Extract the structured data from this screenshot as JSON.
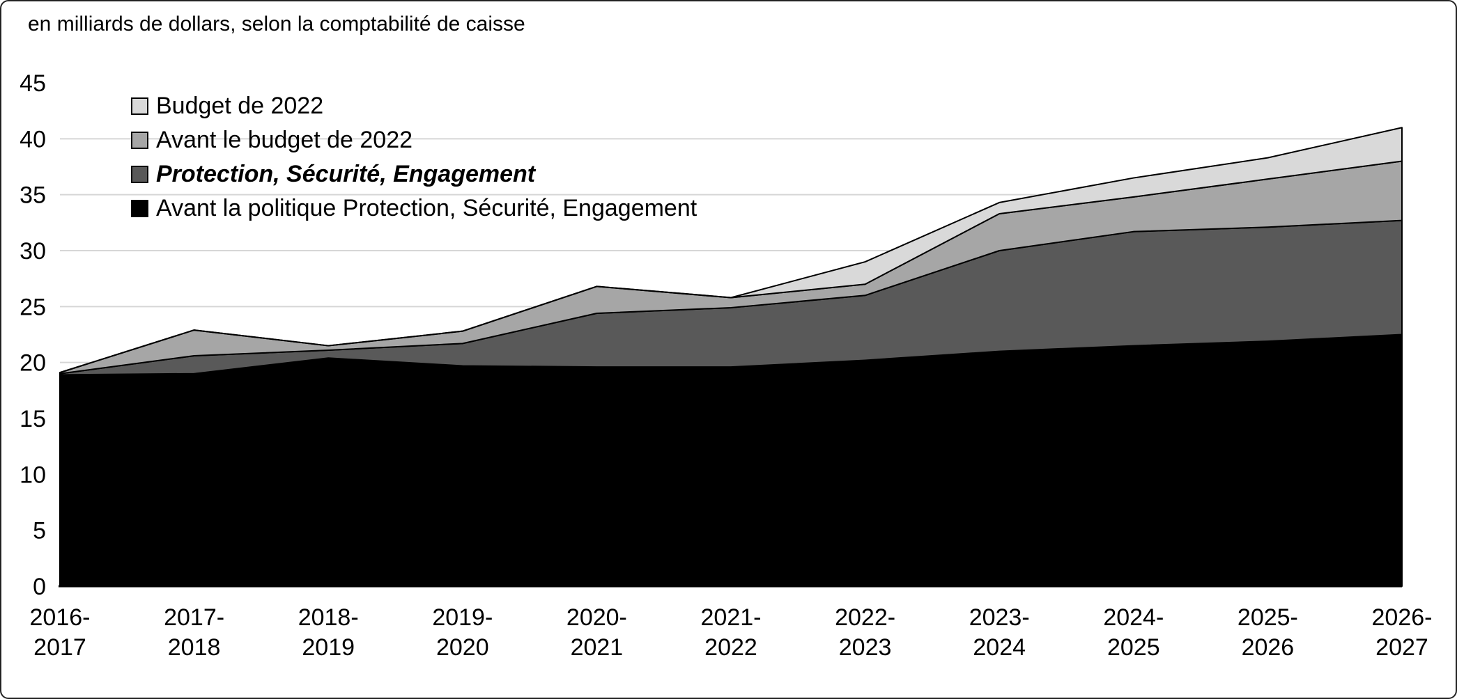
{
  "chart_data": {
    "type": "area",
    "stacked": true,
    "subtitle": "en milliards de dollars, selon la comptabilité de caisse",
    "ylim": [
      0,
      45
    ],
    "ytick_step": 5,
    "grid": "horizontal",
    "legend_position": "top-left-inside",
    "categories": [
      "2016-2017",
      "2017-2018",
      "2018-2019",
      "2019-2020",
      "2020-2021",
      "2021-2022",
      "2022-2023",
      "2023-2024",
      "2024-2025",
      "2025-2026",
      "2026-2027"
    ],
    "series": [
      {
        "key": "avant-politique-pse",
        "name": "Avant la politique Protection, Sécurité, Engagement",
        "color": "#000000",
        "values": [
          18.9,
          19.0,
          20.4,
          19.7,
          19.6,
          19.6,
          20.2,
          21.0,
          21.5,
          21.9,
          22.5
        ]
      },
      {
        "key": "protection-securite-engagement",
        "name": "Protection, Sécurité, Engagement",
        "color": "#595959",
        "italic": true,
        "values": [
          0.1,
          1.6,
          0.7,
          2.0,
          4.8,
          5.3,
          5.8,
          9.0,
          10.2,
          10.2,
          10.2
        ]
      },
      {
        "key": "avant-budget-2022",
        "name": "Avant le budget de 2022",
        "color": "#a6a6a6",
        "values": [
          0.1,
          2.3,
          0.4,
          1.1,
          2.4,
          0.9,
          1.0,
          3.3,
          3.1,
          4.3,
          5.3
        ]
      },
      {
        "key": "budget-2022",
        "name": "Budget de 2022",
        "color": "#d9d9d9",
        "values": [
          0.0,
          0.0,
          0.0,
          0.0,
          0.0,
          0.0,
          2.0,
          1.0,
          1.7,
          1.9,
          3.0
        ]
      }
    ],
    "totals": [
      19.1,
      22.9,
      21.5,
      22.8,
      26.8,
      25.8,
      29.0,
      34.3,
      36.5,
      38.3,
      41.0
    ],
    "colors": {
      "grid": "#d6d6d6",
      "axis": "#000000",
      "outline": "#000000"
    }
  }
}
